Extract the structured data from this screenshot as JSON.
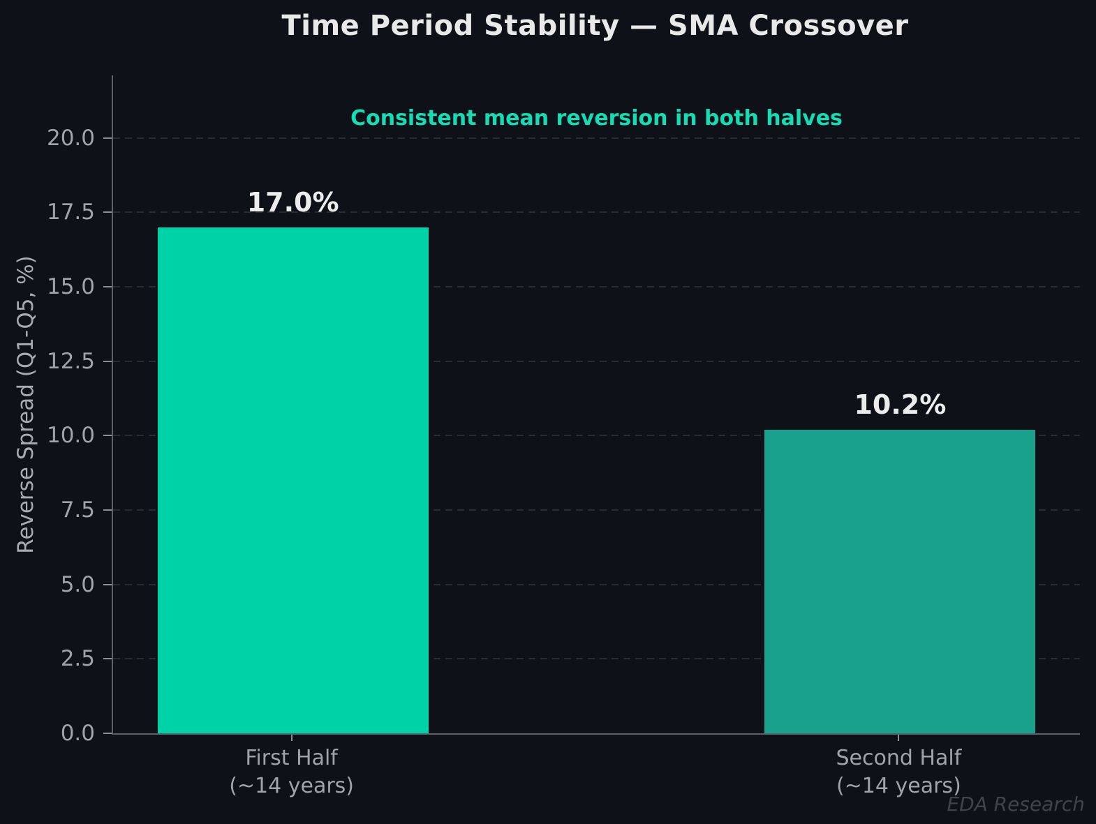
{
  "watermark": "EDA Research",
  "colors": {
    "background": "#0e1117",
    "title_text": "#e9e9e9",
    "subtitle_accent": "#15dcb2",
    "tick_text": "#a0a3a8",
    "spine": "#5c616b",
    "bar_first": "#00d2a8",
    "bar_second": "#1aa18c",
    "watermark_text": "#3f434d"
  },
  "chart_data": {
    "type": "bar",
    "title": "Time Period Stability — SMA Crossover",
    "subtitle": "Consistent mean reversion in both halves",
    "categories": [
      "First Half\n(~14 years)",
      "Second Half\n(~14 years)"
    ],
    "values": [
      17.0,
      10.2
    ],
    "value_labels": [
      "17.0%",
      "10.2%"
    ],
    "bar_colors": [
      "#00d2a8",
      "#1aa18c"
    ],
    "xlabel": "",
    "ylabel": "Reverse Spread (Q1-Q5, %)",
    "ylim": [
      0,
      22.1
    ],
    "yticks": [
      0.0,
      2.5,
      5.0,
      7.5,
      10.0,
      12.5,
      15.0,
      17.5,
      20.0
    ],
    "grid": "horizontal dashed",
    "legend": "none"
  }
}
